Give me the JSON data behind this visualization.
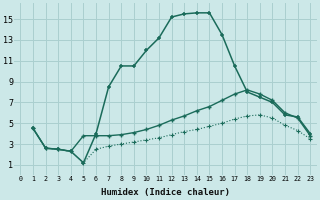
{
  "bg_color": "#cce8e8",
  "grid_color": "#aacfcf",
  "line_color": "#1a6b5a",
  "xlabel": "Humidex (Indice chaleur)",
  "xlim": [
    -0.5,
    23.5
  ],
  "ylim": [
    0,
    16.5
  ],
  "xticks": [
    0,
    1,
    2,
    3,
    4,
    5,
    6,
    7,
    8,
    9,
    10,
    11,
    12,
    13,
    14,
    15,
    16,
    17,
    18,
    19,
    20,
    21,
    22,
    23
  ],
  "yticks": [
    1,
    3,
    5,
    7,
    9,
    11,
    13,
    15
  ],
  "line1_x": [
    1,
    2,
    3,
    4,
    5,
    6,
    7,
    8,
    9,
    10,
    11,
    12,
    13,
    14,
    15,
    16,
    17,
    18,
    19,
    20,
    21,
    22,
    23
  ],
  "line1_y": [
    4.5,
    2.6,
    2.5,
    2.3,
    1.2,
    4.0,
    8.5,
    10.5,
    10.5,
    12.0,
    13.2,
    15.2,
    15.5,
    15.6,
    15.6,
    13.5,
    10.5,
    8.0,
    7.5,
    7.0,
    5.8,
    5.6,
    4.0
  ],
  "line2_x": [
    1,
    2,
    3,
    4,
    5,
    6,
    7,
    8,
    9,
    10,
    11,
    12,
    13,
    14,
    15,
    16,
    17,
    18,
    19,
    20,
    21,
    22,
    23
  ],
  "line2_y": [
    4.5,
    2.6,
    2.5,
    2.3,
    3.8,
    3.8,
    3.8,
    3.9,
    4.1,
    4.4,
    4.8,
    5.3,
    5.7,
    6.2,
    6.6,
    7.2,
    7.8,
    8.2,
    7.8,
    7.2,
    6.0,
    5.5,
    3.8
  ],
  "line3_x": [
    1,
    2,
    3,
    4,
    5,
    6,
    7,
    8,
    9,
    10,
    11,
    12,
    13,
    14,
    15,
    16,
    17,
    18,
    19,
    20,
    21,
    22,
    23
  ],
  "line3_y": [
    4.5,
    2.6,
    2.5,
    2.3,
    1.2,
    2.5,
    2.8,
    3.0,
    3.2,
    3.4,
    3.6,
    3.9,
    4.2,
    4.4,
    4.7,
    5.0,
    5.4,
    5.7,
    5.8,
    5.5,
    4.8,
    4.3,
    3.5
  ]
}
